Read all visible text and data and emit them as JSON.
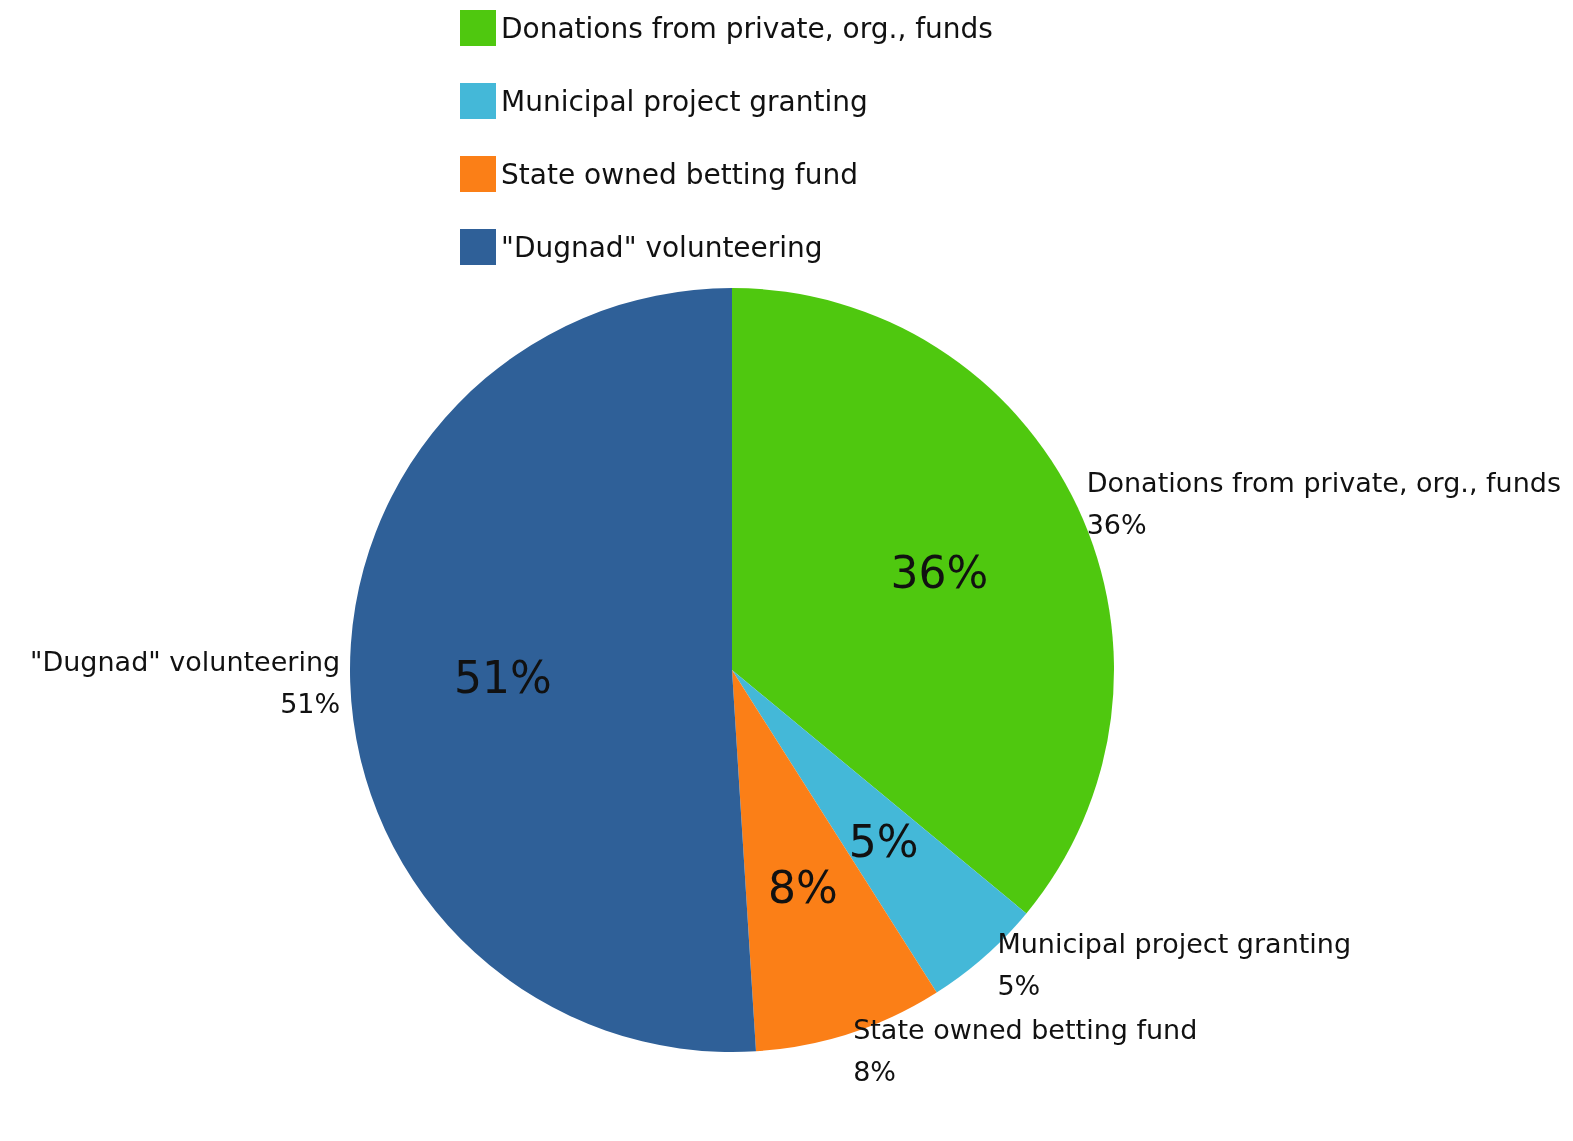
{
  "chart_data": {
    "type": "pie",
    "categories": [
      "Donations from private, org., funds",
      "Municipal project granting",
      "State owned betting fund",
      "\"Dugnad\" volunteering"
    ],
    "values": [
      36,
      5,
      8,
      51
    ],
    "colors": [
      "#4fc80f",
      "#44b8d8",
      "#fb7f17",
      "#2f6098"
    ],
    "value_labels": [
      "36%",
      "5%",
      "8%",
      "51%"
    ],
    "legend": "top"
  }
}
